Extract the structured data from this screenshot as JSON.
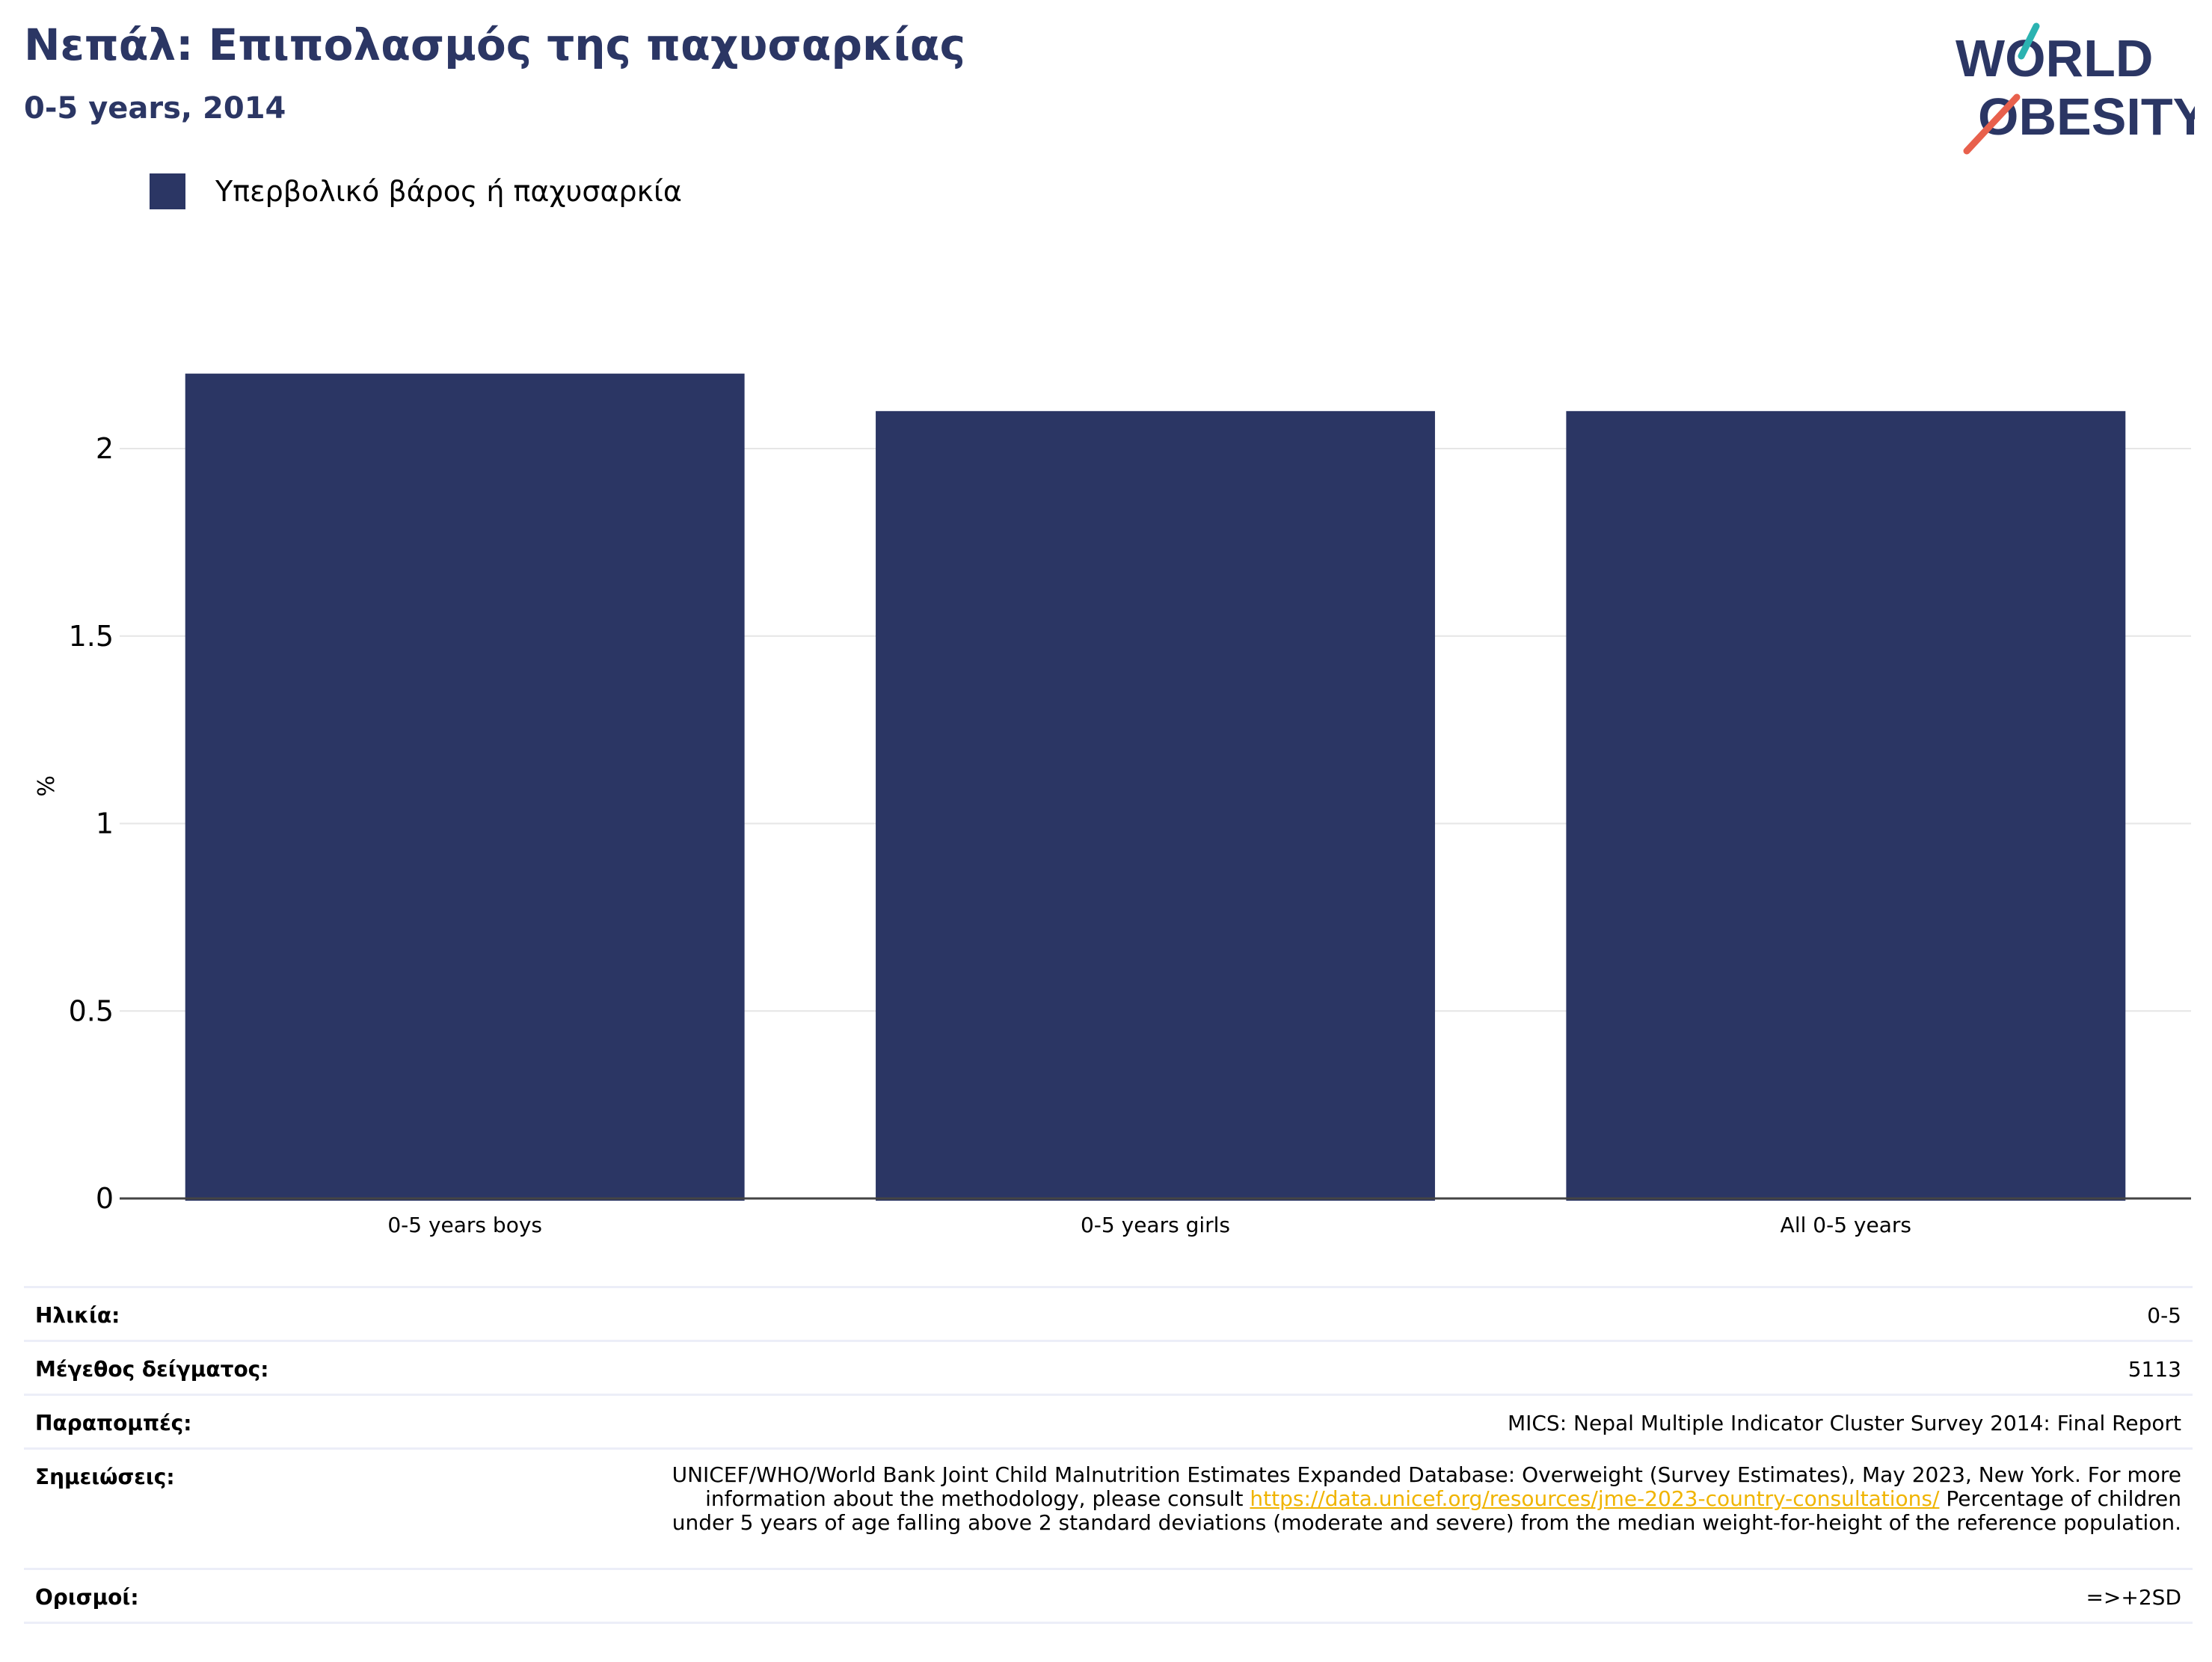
{
  "header": {
    "title": "Νεπάλ: Επιπολασμός της παχυσαρκίας",
    "subtitle": "0-5 years, 2014"
  },
  "logo": {
    "line1": "WORLD",
    "line2": "OBESITY",
    "colors": {
      "text": "#2b3664",
      "slash_top": "#2bb3b1",
      "slash_bottom": "#e8604c"
    }
  },
  "legend": {
    "label": "Υπερβολικό βάρος ή παχυσαρκία",
    "color": "#2b3664"
  },
  "chart_data": {
    "type": "bar",
    "categories": [
      "0-5 years boys",
      "0-5 years girls",
      "All 0-5 years"
    ],
    "series": [
      {
        "name": "Υπερβολικό βάρος ή παχυσαρκία",
        "values": [
          2.2,
          2.1,
          2.1
        ],
        "color": "#2b3664"
      }
    ],
    "ylabel": "%",
    "ylim": [
      0,
      2.2
    ],
    "yticks": [
      "0",
      "0.5",
      "1",
      "1.5",
      "2"
    ],
    "grid": true,
    "legend_position": "top-left"
  },
  "info": {
    "age": {
      "label": "Ηλικία:",
      "value": "0-5"
    },
    "sample": {
      "label": "Μέγεθος δείγματος:",
      "value": "5113"
    },
    "refs": {
      "label": "Παραπομπές:",
      "value": "MICS: Nepal Multiple Indicator Cluster Survey 2014: Final Report"
    },
    "notes": {
      "label": "Σημειώσεις:",
      "before": "UNICEF/WHO/World Bank Joint Child Malnutrition Estimates Expanded Database: Overweight (Survey Estimates), May 2023, New York. For more information about the methodology, please consult ",
      "link": "https://data.unicef.org/resources/jme-2023-country-consultations/",
      "after": " Percentage of children under 5 years of age falling above 2 standard deviations (moderate and severe) from the median weight-for-height of the reference population."
    },
    "definitions": {
      "label": "Ορισμοί:",
      "value": "=>+2SD"
    }
  }
}
